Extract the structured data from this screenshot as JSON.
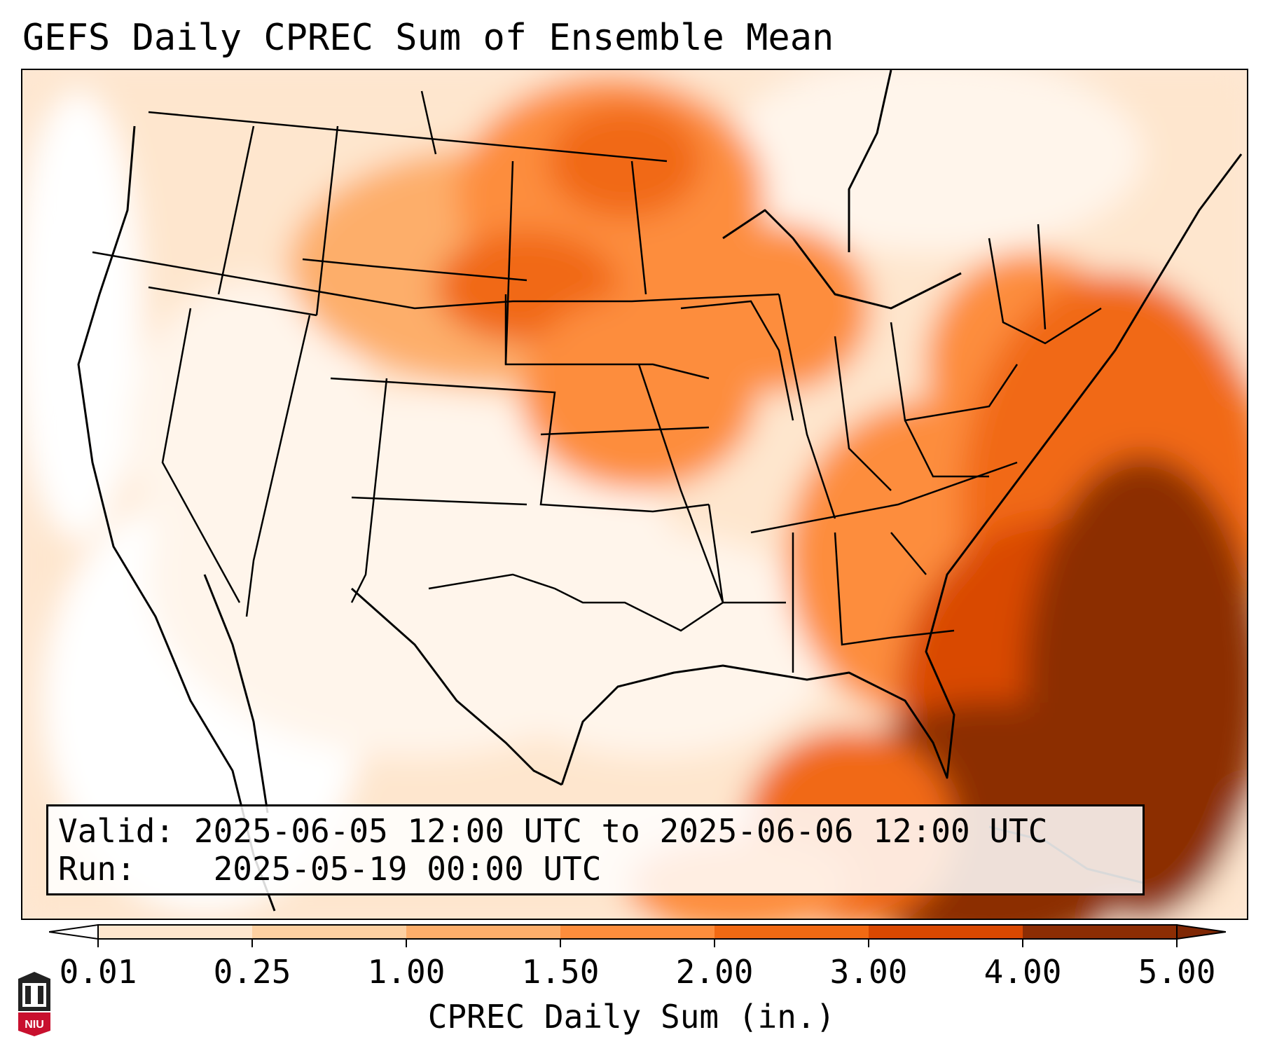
{
  "title": "GEFS Daily CPREC Sum of Ensemble Mean",
  "info": {
    "valid_label": "Valid:",
    "valid_value": "2025-06-05 12:00 UTC to 2025-06-06 12:00 UTC",
    "run_label": "Run:",
    "run_value": "2025-05-19 00:00 UTC"
  },
  "colorbar": {
    "label": "CPREC Daily Sum (in.)",
    "ticks": [
      "0.01",
      "0.25",
      "1.00",
      "1.50",
      "2.00",
      "3.00",
      "4.00",
      "5.00"
    ],
    "colors": [
      "#fff5eb",
      "#fee6ce",
      "#fdd0a2",
      "#fdae6b",
      "#fd8d3c",
      "#f16913",
      "#d94801",
      "#8c2d04"
    ],
    "under_color": "#ffffff",
    "over_color": "#7f2704",
    "extend": "both"
  },
  "logo": {
    "text": "NIU",
    "color": "#c8102e"
  }
}
